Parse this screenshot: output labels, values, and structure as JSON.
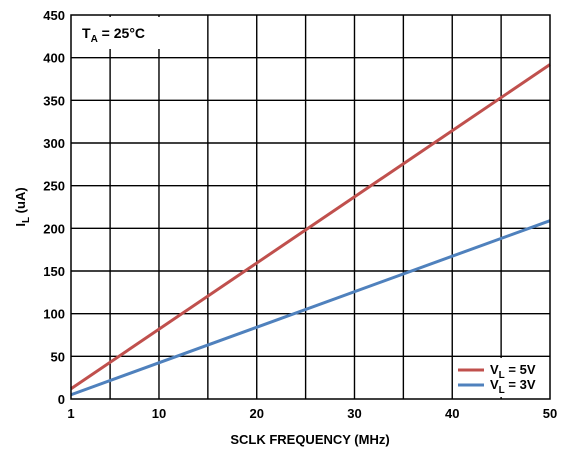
{
  "chart_data": {
    "type": "line",
    "xlabel": "SCLK FREQUENCY (MHz)",
    "ylabel_main": "I",
    "ylabel_sub": "L",
    "ylabel_rest": " (uA)",
    "annotation_main": "T",
    "annotation_sub": "A",
    "annotation_rest": " = 25°C",
    "xlim": [
      1,
      50
    ],
    "ylim": [
      0,
      450
    ],
    "x_ticks": [
      1,
      10,
      20,
      30,
      40,
      50
    ],
    "y_ticks": [
      0,
      50,
      100,
      150,
      200,
      250,
      300,
      350,
      400,
      450
    ],
    "grid": true,
    "legend_position": "bottom-right",
    "series": [
      {
        "name_main": "V",
        "name_sub": "L",
        "name_rest": " = 5V",
        "color": "#c0504d",
        "x": [
          1,
          50
        ],
        "y": [
          12,
          392
        ]
      },
      {
        "name_main": "V",
        "name_sub": "L",
        "name_rest": " = 3V",
        "color": "#4f81bd",
        "x": [
          1,
          50
        ],
        "y": [
          5,
          209
        ]
      }
    ]
  }
}
